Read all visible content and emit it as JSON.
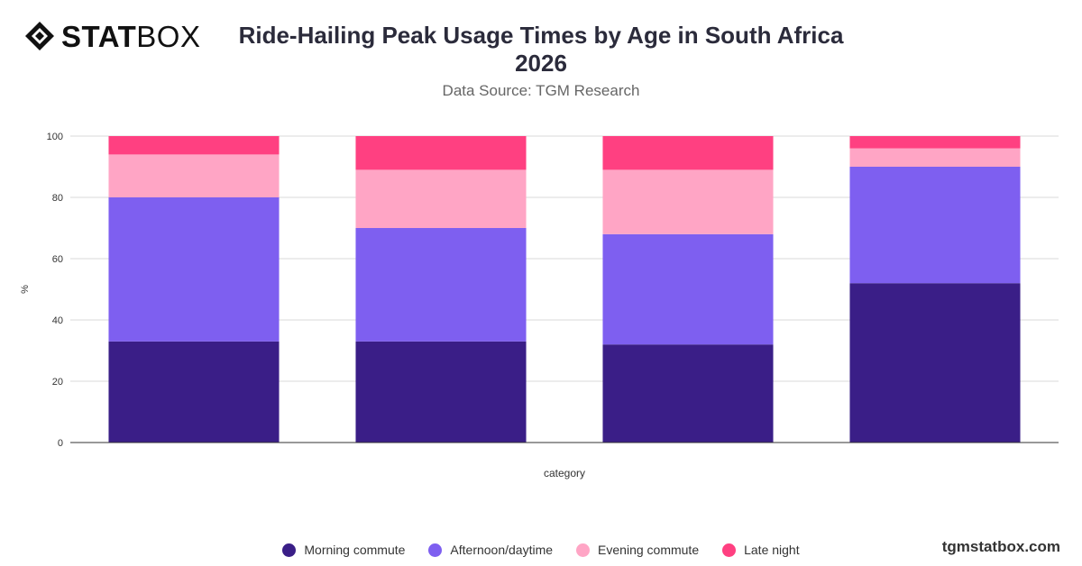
{
  "brand": {
    "logo_bold": "STAT",
    "logo_light": "BOX",
    "website": "tgmstatbox.com"
  },
  "chart_data": {
    "type": "bar",
    "stacked": true,
    "title_line1": "Ride-Hailing Peak Usage Times by Age in South Africa",
    "title_line2": "2026",
    "subtitle": "Data Source: TGM Research",
    "xlabel": "category",
    "ylabel": "%",
    "ylim": [
      0,
      100
    ],
    "yticks": [
      0,
      20,
      40,
      60,
      80,
      100
    ],
    "grid": true,
    "legend_position": "bottom",
    "categories": [
      "",
      "",
      "",
      ""
    ],
    "series": [
      {
        "name": "Morning commute",
        "color": "#3a1e87",
        "values": [
          33,
          33,
          32,
          52
        ]
      },
      {
        "name": "Afternoon/daytime",
        "color": "#7e5ff0",
        "values": [
          47,
          37,
          36,
          38
        ]
      },
      {
        "name": "Evening commute",
        "color": "#ffa5c5",
        "values": [
          14,
          19,
          21,
          6
        ]
      },
      {
        "name": "Late night",
        "color": "#ff4081",
        "values": [
          6,
          11,
          11,
          4
        ]
      }
    ]
  }
}
